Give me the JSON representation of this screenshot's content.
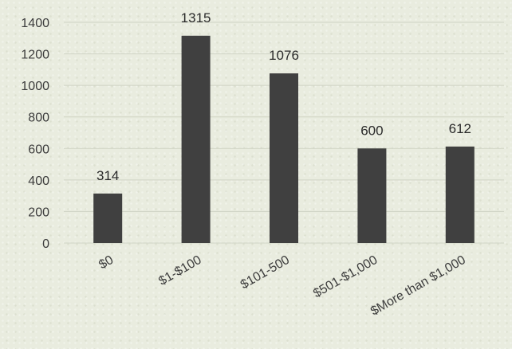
{
  "chart_data": {
    "type": "bar",
    "categories": [
      "$0",
      "$1-$100",
      "$101-500",
      "$501-$1,000",
      "$More than $1,000"
    ],
    "values": [
      314,
      1315,
      1076,
      600,
      612
    ],
    "data_labels": [
      "314",
      "1315",
      "1076",
      "600",
      "612"
    ],
    "title": "",
    "xlabel": "",
    "ylabel": "",
    "ylim": [
      0,
      1400
    ],
    "yticks": [
      0,
      200,
      400,
      600,
      800,
      1000,
      1200,
      1400
    ],
    "grid": true,
    "legend": "none",
    "bar_color": "#404040"
  }
}
